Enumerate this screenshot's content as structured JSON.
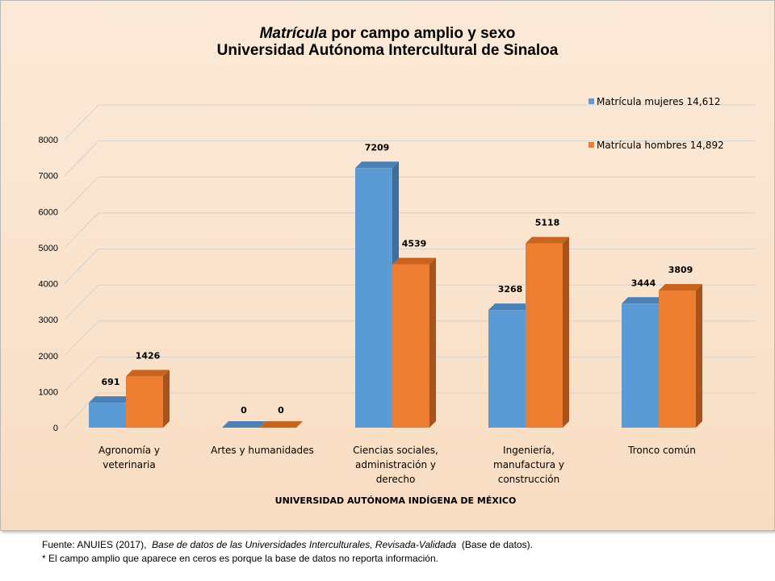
{
  "chart_data": {
    "type": "bar",
    "title_line1_italic": "Matrícula",
    "title_line1_rest": " por campo amplio y sexo",
    "title_line2": "Universidad Autónoma Intercultural de Sinaloa",
    "categories": [
      [
        "Agronomía y",
        "veterinaria"
      ],
      [
        "Artes y humanidades"
      ],
      [
        "Ciencias sociales,",
        "administración y",
        "derecho"
      ],
      [
        "Ingeniería,",
        "manufactura y",
        "construcción"
      ],
      [
        "Tronco común"
      ]
    ],
    "series": [
      {
        "name": "Matrícula mujeres  14,612",
        "values": [
          691,
          0,
          7209,
          3268,
          3444
        ]
      },
      {
        "name": "Matrícula hombres 14,892",
        "values": [
          1426,
          0,
          4539,
          5118,
          3809
        ]
      }
    ],
    "ylim": [
      0,
      8000
    ],
    "yticks": [
      "0",
      "1000",
      "2000",
      "3000",
      "4000",
      "5000",
      "6000",
      "7000",
      "8000"
    ],
    "xlabel": "UNIVERSIDAD AUTÓNOMA INDÍGENA DE MÉXICO",
    "ylabel": "",
    "grid": true,
    "legend": "top-right"
  },
  "colors": {
    "mujeres_front": "#5b9bd5",
    "mujeres_side": "#3c6f9e",
    "mujeres_top": "#4a82b8",
    "hombres_front": "#ed7d31",
    "hombres_side": "#a9531c",
    "hombres_top": "#c9641f"
  },
  "footer": {
    "source_prefix": "Fuente: ANUIES (2017),",
    "source_italic": "Base de datos de las Universidades Interculturales, Revisada-Validada",
    "source_suffix": "(Base de datos).",
    "note": "* El campo amplio que aparece en ceros es porque la base de datos no reporta información."
  }
}
